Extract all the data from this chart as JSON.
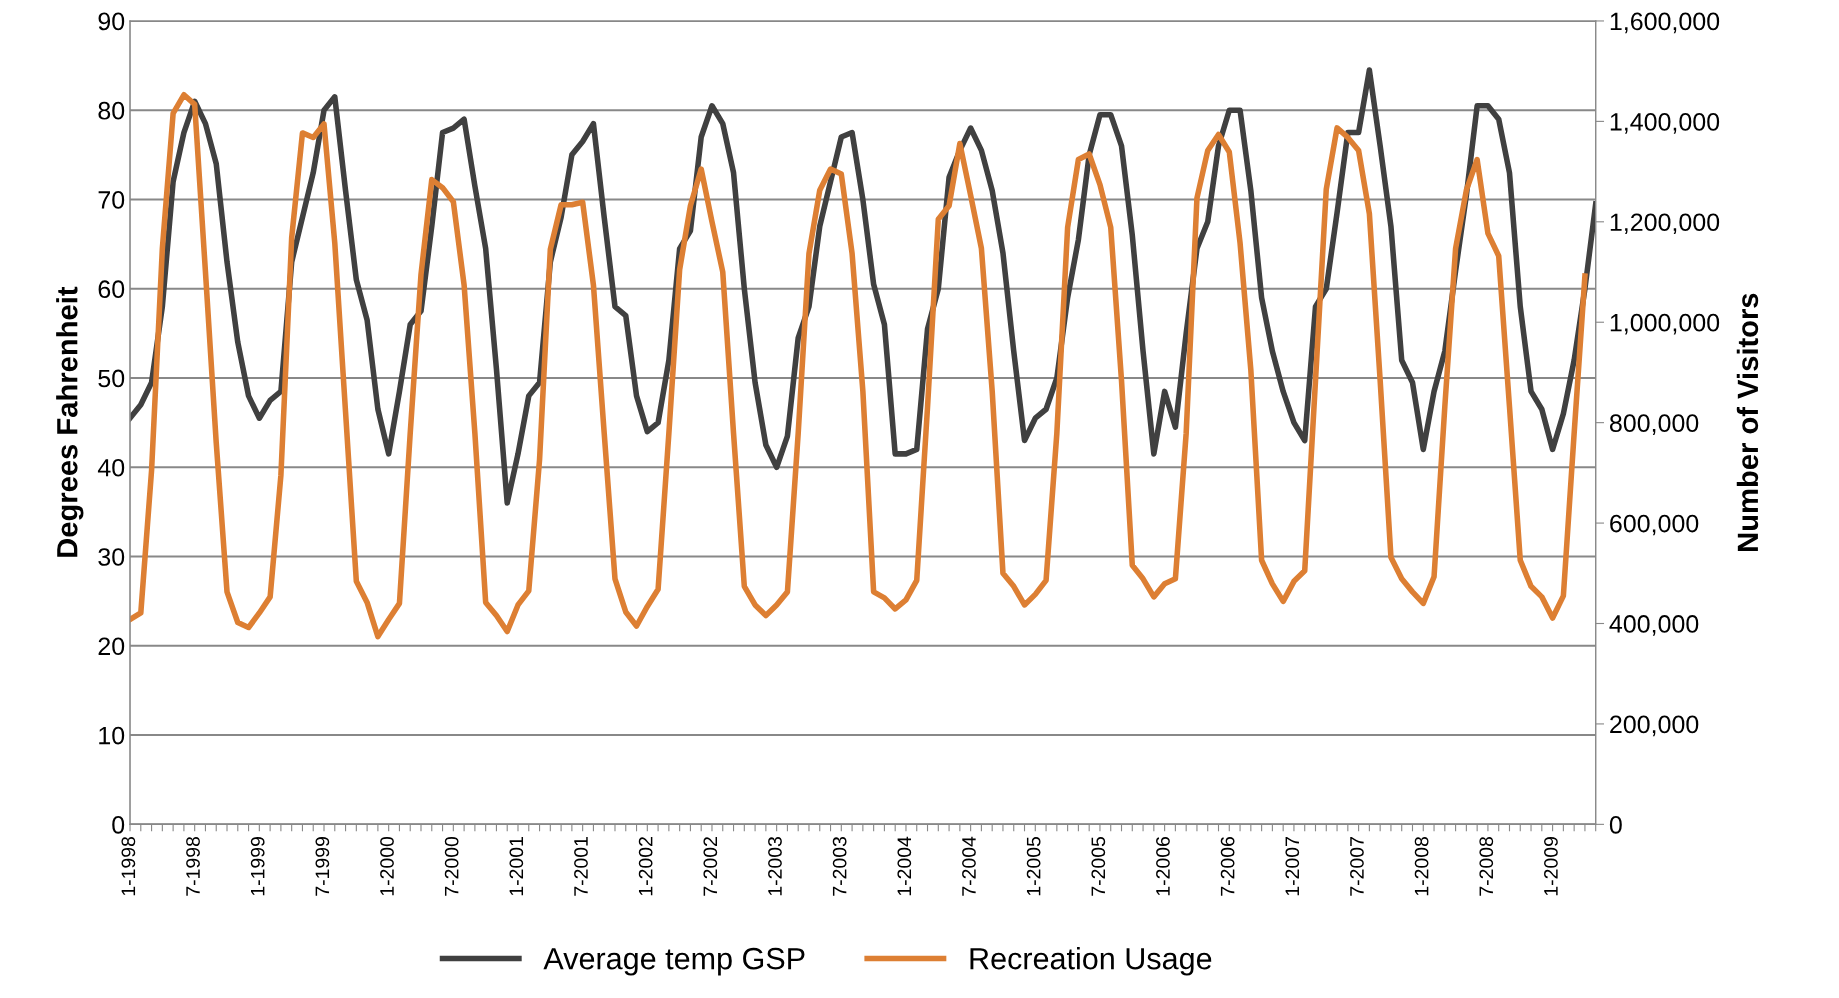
{
  "chart_data": {
    "type": "line",
    "categories": [
      "1-1998",
      null,
      null,
      null,
      null,
      null,
      "7-1998",
      null,
      null,
      null,
      null,
      null,
      "1-1999",
      null,
      null,
      null,
      null,
      null,
      "7-1999",
      null,
      null,
      null,
      null,
      null,
      "1-2000",
      null,
      null,
      null,
      null,
      null,
      "7-2000",
      null,
      null,
      null,
      null,
      null,
      "1-2001",
      null,
      null,
      null,
      null,
      null,
      "7-2001",
      null,
      null,
      null,
      null,
      null,
      "1-2002",
      null,
      null,
      null,
      null,
      null,
      "7-2002",
      null,
      null,
      null,
      null,
      null,
      "1-2003",
      null,
      null,
      null,
      null,
      null,
      "7-2003",
      null,
      null,
      null,
      null,
      null,
      "1-2004",
      null,
      null,
      null,
      null,
      null,
      "7-2004",
      null,
      null,
      null,
      null,
      null,
      "1-2005",
      null,
      null,
      null,
      null,
      null,
      "7-2005",
      null,
      null,
      null,
      null,
      null,
      "1-2006",
      null,
      null,
      null,
      null,
      null,
      "7-2006",
      null,
      null,
      null,
      null,
      null,
      "1-2007",
      null,
      null,
      null,
      null,
      null,
      "7-2007",
      null,
      null,
      null,
      null,
      null,
      "1-2008",
      null,
      null,
      null,
      null,
      null,
      "7-2008",
      null,
      null,
      null,
      null,
      null,
      "1-2009",
      null,
      null,
      null,
      null
    ],
    "series": [
      {
        "name": "Average temp GSP",
        "color": "#404040",
        "values": [
          45.5,
          47,
          49.5,
          58,
          72,
          77.5,
          81,
          78.5,
          74,
          63,
          54,
          48,
          45.5,
          47.5,
          48.5,
          63,
          68,
          73,
          80,
          81.5,
          71,
          61,
          56.5,
          46.5,
          41.5,
          48.5,
          56,
          57.5,
          67,
          77.5,
          78,
          79,
          71.5,
          64.5,
          51,
          36,
          41.5,
          48,
          49.5,
          63,
          68,
          75,
          76.5,
          78.5,
          68,
          58,
          57,
          48,
          44,
          45,
          52,
          64.5,
          66.5,
          77,
          80.5,
          78.5,
          73,
          60,
          49.5,
          42.5,
          40,
          43.5,
          54.5,
          58,
          67,
          72,
          77,
          77.5,
          70,
          60.5,
          56,
          41.5,
          41.5,
          42,
          55.5,
          60,
          72.5,
          75.5,
          78,
          75.5,
          71,
          64,
          53,
          43,
          45.5,
          46.5,
          50,
          59,
          65.5,
          75,
          79.5,
          79.5,
          76,
          66,
          53,
          41.5,
          48.5,
          44.5,
          55,
          64.5,
          67.5,
          76,
          80,
          80,
          71,
          59,
          53,
          48.5,
          45,
          43,
          58,
          60,
          68.5,
          77.5,
          77.5,
          84.5,
          76,
          67,
          52,
          49.5,
          42,
          48.5,
          53,
          62,
          70.5,
          80.5,
          80.5,
          79,
          73,
          58,
          48.5,
          46.5,
          42,
          46,
          52,
          60,
          69.5
        ]
      },
      {
        "name": "Recreation Usage",
        "color": "#dd7f33",
        "axis": "y2",
        "values": [
          408000,
          421000,
          705000,
          1147000,
          1416000,
          1453000,
          1434000,
          1100000,
          760000,
          463000,
          402000,
          392000,
          421000,
          453000,
          695000,
          1168000,
          1377000,
          1368000,
          1395000,
          1158000,
          821000,
          484000,
          442000,
          374000,
          408000,
          440000,
          779000,
          1095000,
          1284000,
          1268000,
          1240000,
          1074000,
          779000,
          442000,
          416000,
          384000,
          437000,
          465000,
          726000,
          1145000,
          1234000,
          1234000,
          1239000,
          1074000,
          779000,
          489000,
          423000,
          395000,
          434000,
          468000,
          779000,
          1105000,
          1232000,
          1305000,
          1200000,
          1100000,
          779000,
          474000,
          437000,
          416000,
          437000,
          463000,
          779000,
          1137000,
          1263000,
          1305000,
          1295000,
          1137000,
          863000,
          463000,
          451000,
          429000,
          447000,
          486000,
          831000,
          1205000,
          1232000,
          1356000,
          1253000,
          1147000,
          863000,
          500000,
          474000,
          437000,
          458000,
          486000,
          779000,
          1189000,
          1324000,
          1335000,
          1274000,
          1189000,
          884000,
          516000,
          489000,
          453000,
          479000,
          489000,
          779000,
          1247000,
          1342000,
          1374000,
          1339000,
          1158000,
          905000,
          526000,
          479000,
          444000,
          484000,
          505000,
          884000,
          1265000,
          1387000,
          1368000,
          1342000,
          1216000,
          884000,
          532000,
          489000,
          463000,
          440000,
          493000,
          832000,
          1147000,
          1263000,
          1324000,
          1177000,
          1132000,
          832000,
          526000,
          474000,
          453000,
          411000,
          455000,
          779000,
          1092000,
          null
        ]
      }
    ],
    "ylabel": "Degrees Fahrenheit",
    "y2label": "Number of Visitors",
    "ylim": [
      0,
      90
    ],
    "yticks": [
      0,
      10,
      20,
      30,
      40,
      50,
      60,
      70,
      80,
      90
    ],
    "y2lim": [
      0,
      1600000
    ],
    "y2ticks": [
      0,
      {
        "value": 200000,
        "label": "200,000"
      },
      {
        "value": 400000,
        "label": "400,000"
      },
      {
        "value": 600000,
        "label": "600,000"
      },
      {
        "value": 800000,
        "label": "800,000"
      },
      {
        "value": 1000000,
        "label": "1,000,000"
      },
      {
        "value": 1200000,
        "label": "1,200,000"
      },
      {
        "value": 1400000,
        "label": "1,400,000"
      },
      {
        "value": 1600000,
        "label": "1,600,000"
      }
    ],
    "grid": "y",
    "legend": "bottom",
    "marker": "none",
    "line_style": "solid"
  }
}
